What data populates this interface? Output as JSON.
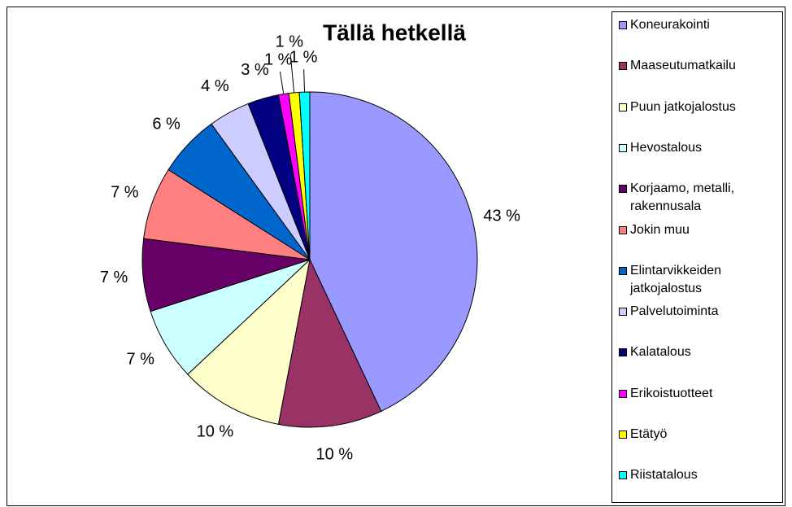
{
  "chart_data": {
    "type": "pie",
    "title": "Tällä hetkellä",
    "categories": [
      "Koneurakointi",
      "Maaseutumatkailu",
      "Puun jatkojalostus",
      "Hevostalous",
      "Korjaamo, metalli, rakennusala",
      "Jokin muu",
      "Elintarvikkeiden jatkojalostus",
      "Palvelutoiminta",
      "Kalatalous",
      "Erikoistuotteet",
      "Etätyö",
      "Riistatalous"
    ],
    "values": [
      43,
      10,
      10,
      7,
      7,
      7,
      6,
      4,
      3,
      1,
      1,
      1
    ],
    "value_labels": [
      "43 %",
      "10 %",
      "10 %",
      "7 %",
      "7 %",
      "7 %",
      "6 %",
      "4 %",
      "3 %",
      "1 %",
      "1 %",
      "1 %"
    ],
    "colors": [
      "#9999ff",
      "#993366",
      "#ffffcc",
      "#ccffff",
      "#660066",
      "#ff8080",
      "#0066cc",
      "#ccccff",
      "#000080",
      "#ff00ff",
      "#ffff00",
      "#00ffff"
    ],
    "legend": "right"
  }
}
